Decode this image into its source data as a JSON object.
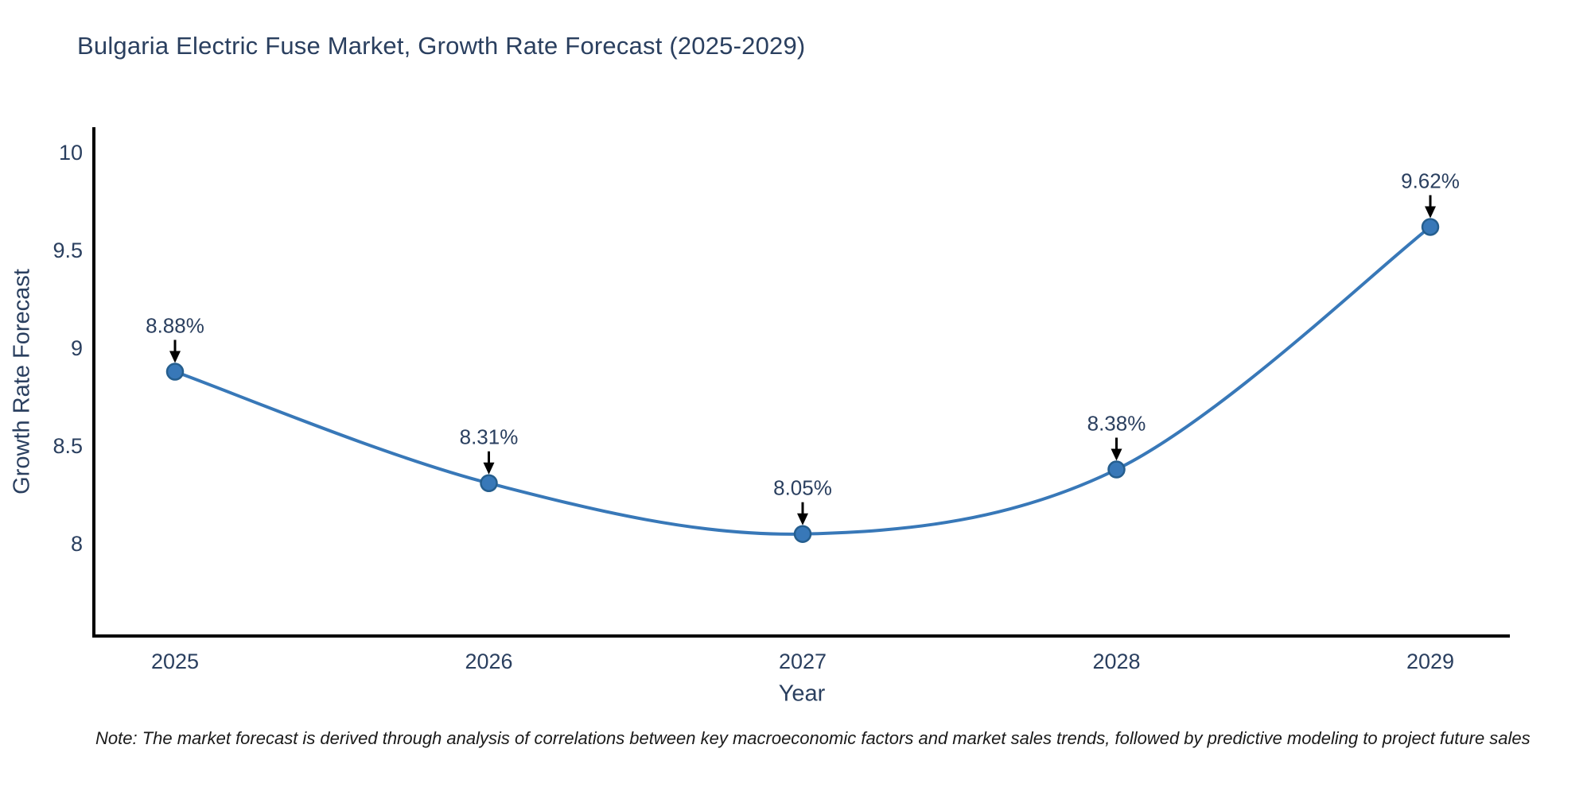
{
  "header": {
    "title": "Bulgaria Electric Fuse Market, Growth Rate Forecast (2025-2029)"
  },
  "footnote": "Note: The market forecast is derived through analysis of correlations between key macroeconomic factors and market sales trends, followed by predictive modeling to project future sales",
  "chart_data": {
    "type": "line",
    "title": "Bulgaria Electric Fuse Market, Growth Rate Forecast (2025-2029)",
    "xlabel": "Year",
    "ylabel": "Growth Rate Forecast",
    "x": [
      2025,
      2026,
      2027,
      2028,
      2029
    ],
    "series": [
      {
        "name": "Growth Rate Forecast",
        "values": [
          8.88,
          8.31,
          8.05,
          8.38,
          9.62
        ]
      }
    ],
    "point_labels": [
      "8.88%",
      "8.31%",
      "8.05%",
      "8.38%",
      "9.62%"
    ],
    "xticks": [
      "2025",
      "2026",
      "2027",
      "2028",
      "2029"
    ],
    "yticks": [
      8,
      8.5,
      9,
      9.5,
      10
    ],
    "ylim": [
      7.53,
      10.13
    ],
    "xlim": [
      2024.74,
      2029.25
    ],
    "grid": false,
    "legend_position": "none",
    "line_shape": "spline",
    "annotation_arrows": true,
    "colors": {
      "line": "#3878b8",
      "marker_fill": "#3878b8",
      "marker_edge": "#255e8e",
      "axis_line": "#000000",
      "tick_text": "#2a3f5f",
      "annotation_text": "#2a3f5f",
      "annotation_arrow": "#000000",
      "background": "#ffffff"
    }
  }
}
